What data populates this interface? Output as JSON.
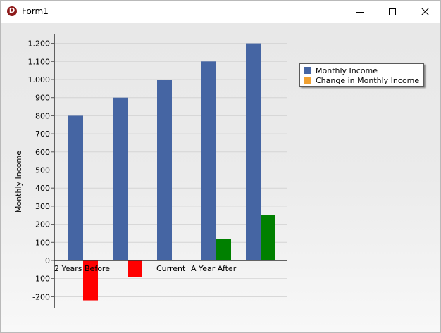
{
  "window": {
    "title": "Form1",
    "app_icon_letter": "D",
    "controls": {
      "minimize": "minimize",
      "maximize": "maximize",
      "close": "close"
    }
  },
  "colors": {
    "series1": "#4565a3",
    "positive_change": "#008000",
    "negative_change": "#ff0000",
    "legend_change_swatch": "#f0a030"
  },
  "legend": {
    "placement": "top-right",
    "items": [
      {
        "label": "Monthly Income",
        "color": "#4565a3"
      },
      {
        "label": "Change in Monthly Income",
        "color": "#f0a030"
      }
    ]
  },
  "chart_data": {
    "type": "bar",
    "ylabel": "Monthly Income",
    "xlabel": "",
    "ylim": [
      -260,
      1240
    ],
    "yticks": [
      1200,
      1100,
      1000,
      900,
      800,
      700,
      600,
      500,
      400,
      300,
      200,
      100,
      0,
      -100,
      -200
    ],
    "ytick_labels": [
      "1.200",
      "1.100",
      "1.000",
      "900",
      "800",
      "700",
      "600",
      "500",
      "400",
      "300",
      "200",
      "100",
      "0",
      "-100",
      "-200"
    ],
    "grid": true,
    "categories": [
      "2 Years Before",
      "",
      "Current",
      "A Year After",
      ""
    ],
    "series": [
      {
        "name": "Monthly Income",
        "values": [
          800,
          900,
          1000,
          1100,
          1200
        ]
      },
      {
        "name": "Change in Monthly Income",
        "values": [
          -220,
          -90,
          0,
          120,
          250
        ]
      }
    ]
  }
}
